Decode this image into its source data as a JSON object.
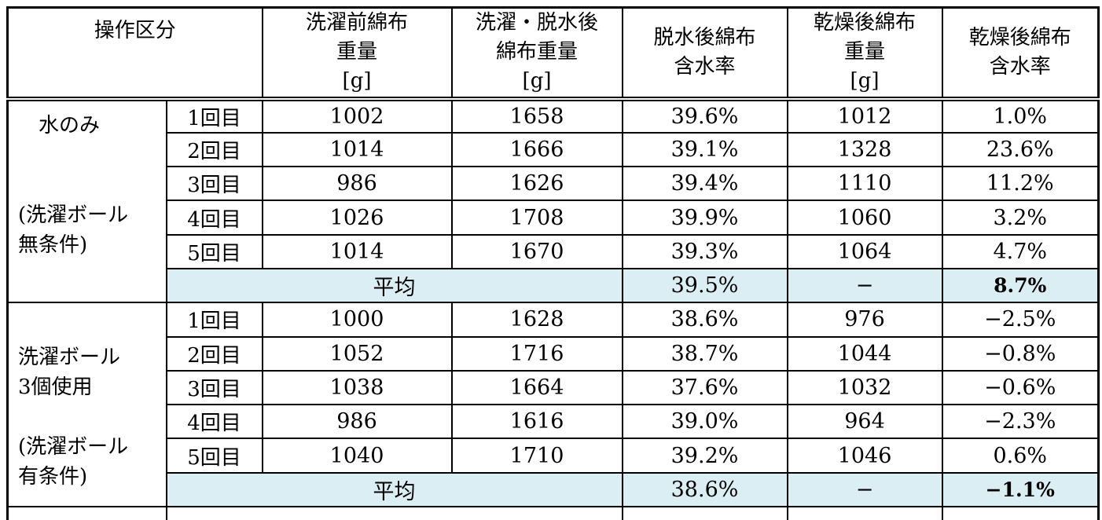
{
  "table": {
    "columns": [
      {
        "key": "operation",
        "label_lines": [
          "操作区分"
        ]
      },
      {
        "key": "pre_wash_weight",
        "label_lines": [
          "洗濯前綿布",
          "重量",
          "[g]"
        ]
      },
      {
        "key": "after_wash_weight",
        "label_lines": [
          "洗濯・脱水後",
          "綿布重量",
          "[g]"
        ]
      },
      {
        "key": "after_dehydration_moisture",
        "label_lines": [
          "脱水後綿布",
          "含水率"
        ]
      },
      {
        "key": "after_drying_weight",
        "label_lines": [
          "乾燥後綿布",
          "重量",
          "[g]"
        ]
      },
      {
        "key": "after_drying_moisture",
        "label_lines": [
          "乾燥後綿布",
          "含水率"
        ]
      }
    ],
    "groups": [
      {
        "label_lines": [
          "　水のみ",
          "",
          "",
          "(洗濯ボール",
          "無条件)"
        ],
        "rows": [
          {
            "trial": "1回目",
            "pre": "1002",
            "washed": "1658",
            "dehydrated_moisture": "39.6%",
            "dried": "1012",
            "dried_moisture": "1.0%"
          },
          {
            "trial": "2回目",
            "pre": "1014",
            "washed": "1666",
            "dehydrated_moisture": "39.1%",
            "dried": "1328",
            "dried_moisture": "23.6%"
          },
          {
            "trial": "3回目",
            "pre": "986",
            "washed": "1626",
            "dehydrated_moisture": "39.4%",
            "dried": "1110",
            "dried_moisture": "11.2%"
          },
          {
            "trial": "4回目",
            "pre": "1026",
            "washed": "1708",
            "dehydrated_moisture": "39.9%",
            "dried": "1060",
            "dried_moisture": "3.2%"
          },
          {
            "trial": "5回目",
            "pre": "1014",
            "washed": "1670",
            "dehydrated_moisture": "39.3%",
            "dried": "1064",
            "dried_moisture": "4.7%"
          }
        ],
        "average": {
          "label": "平均",
          "dehydrated_moisture": "39.5%",
          "dried": "−",
          "dried_moisture": "8.7%"
        }
      },
      {
        "label_lines": [
          "",
          "洗濯ボール",
          "3個使用",
          "",
          "(洗濯ボール",
          "有条件)"
        ],
        "rows": [
          {
            "trial": "1回目",
            "pre": "1000",
            "washed": "1628",
            "dehydrated_moisture": "38.6%",
            "dried": "976",
            "dried_moisture": "−2.5%"
          },
          {
            "trial": "2回目",
            "pre": "1052",
            "washed": "1716",
            "dehydrated_moisture": "38.7%",
            "dried": "1044",
            "dried_moisture": "−0.8%"
          },
          {
            "trial": "3回目",
            "pre": "1038",
            "washed": "1664",
            "dehydrated_moisture": "37.6%",
            "dried": "1032",
            "dried_moisture": "−0.6%"
          },
          {
            "trial": "4回目",
            "pre": "986",
            "washed": "1616",
            "dehydrated_moisture": "39.0%",
            "dried": "964",
            "dried_moisture": "−2.3%"
          },
          {
            "trial": "5回目",
            "pre": "1040",
            "washed": "1710",
            "dehydrated_moisture": "39.2%",
            "dried": "1046",
            "dried_moisture": "0.6%"
          }
        ],
        "average": {
          "label": "平均",
          "dehydrated_moisture": "38.6%",
          "dried": "−",
          "dried_moisture": "−1.1%"
        }
      }
    ],
    "colors": {
      "average_row_bg": "#daeef3",
      "border": "#000000",
      "text": "#000000",
      "background": "#ffffff"
    }
  }
}
